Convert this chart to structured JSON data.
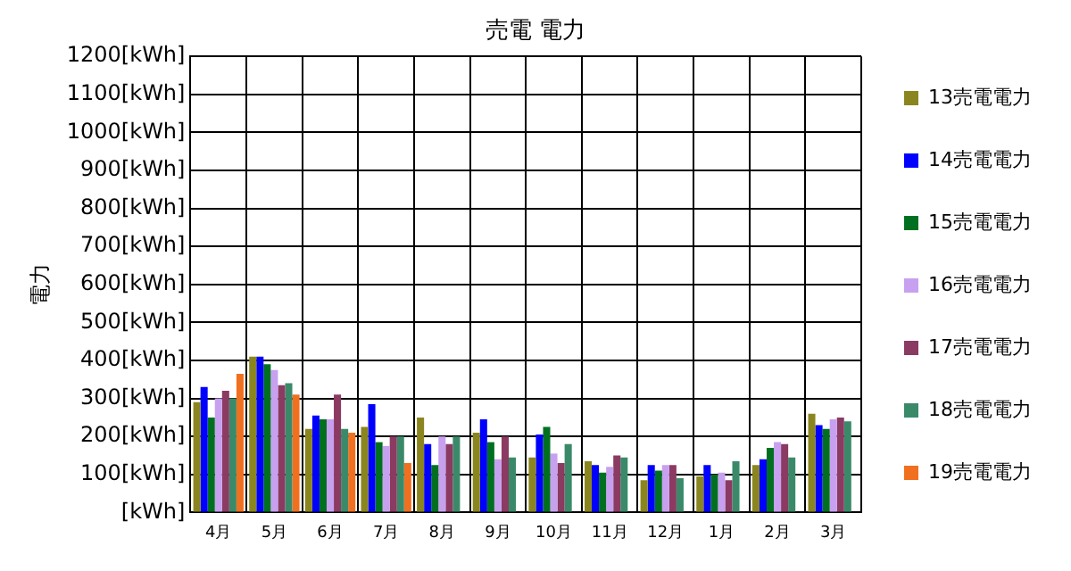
{
  "chart_data": {
    "type": "bar",
    "title": "売電 電力",
    "ylabel": "電力",
    "categories": [
      "4月",
      "5月",
      "6月",
      "7月",
      "8月",
      "9月",
      "10月",
      "11月",
      "12月",
      "1月",
      "2月",
      "3月"
    ],
    "series": [
      {
        "name": "13売電電力",
        "color": "#8b8520",
        "values": [
          290,
          410,
          220,
          225,
          250,
          210,
          145,
          135,
          85,
          95,
          125,
          260
        ]
      },
      {
        "name": "14売電電力",
        "color": "#0000ff",
        "values": [
          330,
          410,
          255,
          285,
          180,
          245,
          205,
          125,
          125,
          125,
          140,
          230
        ]
      },
      {
        "name": "15売電電力",
        "color": "#007020",
        "values": [
          250,
          390,
          245,
          185,
          125,
          185,
          225,
          105,
          110,
          100,
          170,
          220
        ]
      },
      {
        "name": "16売電電力",
        "color": "#c8a0f0",
        "values": [
          300,
          375,
          245,
          175,
          200,
          140,
          155,
          120,
          125,
          105,
          185,
          245
        ]
      },
      {
        "name": "17売電電力",
        "color": "#8b3a62",
        "values": [
          320,
          335,
          310,
          200,
          180,
          200,
          130,
          150,
          125,
          85,
          180,
          250
        ]
      },
      {
        "name": "18売電電力",
        "color": "#3a8a6a",
        "values": [
          300,
          340,
          220,
          200,
          200,
          145,
          180,
          145,
          90,
          135,
          145,
          240
        ]
      },
      {
        "name": "19売電電力",
        "color": "#f07020",
        "values": [
          365,
          310,
          210,
          130,
          null,
          null,
          null,
          null,
          null,
          null,
          null,
          null
        ]
      }
    ],
    "ylim": [
      0,
      1200
    ],
    "yticks": [
      {
        "value": 0,
        "label": "[kWh]"
      },
      {
        "value": 100,
        "label": "100[kWh]"
      },
      {
        "value": 200,
        "label": "200[kWh]"
      },
      {
        "value": 300,
        "label": "300[kWh]"
      },
      {
        "value": 400,
        "label": "400[kWh]"
      },
      {
        "value": 500,
        "label": "500[kWh]"
      },
      {
        "value": 600,
        "label": "600[kWh]"
      },
      {
        "value": 700,
        "label": "700[kWh]"
      },
      {
        "value": 800,
        "label": "800[kWh]"
      },
      {
        "value": 900,
        "label": "900[kWh]"
      },
      {
        "value": 1000,
        "label": "1000[kWh]"
      },
      {
        "value": 1100,
        "label": "1100[kWh]"
      },
      {
        "value": 1200,
        "label": "1200[kWh]"
      }
    ],
    "grid": true,
    "legend": "right"
  }
}
